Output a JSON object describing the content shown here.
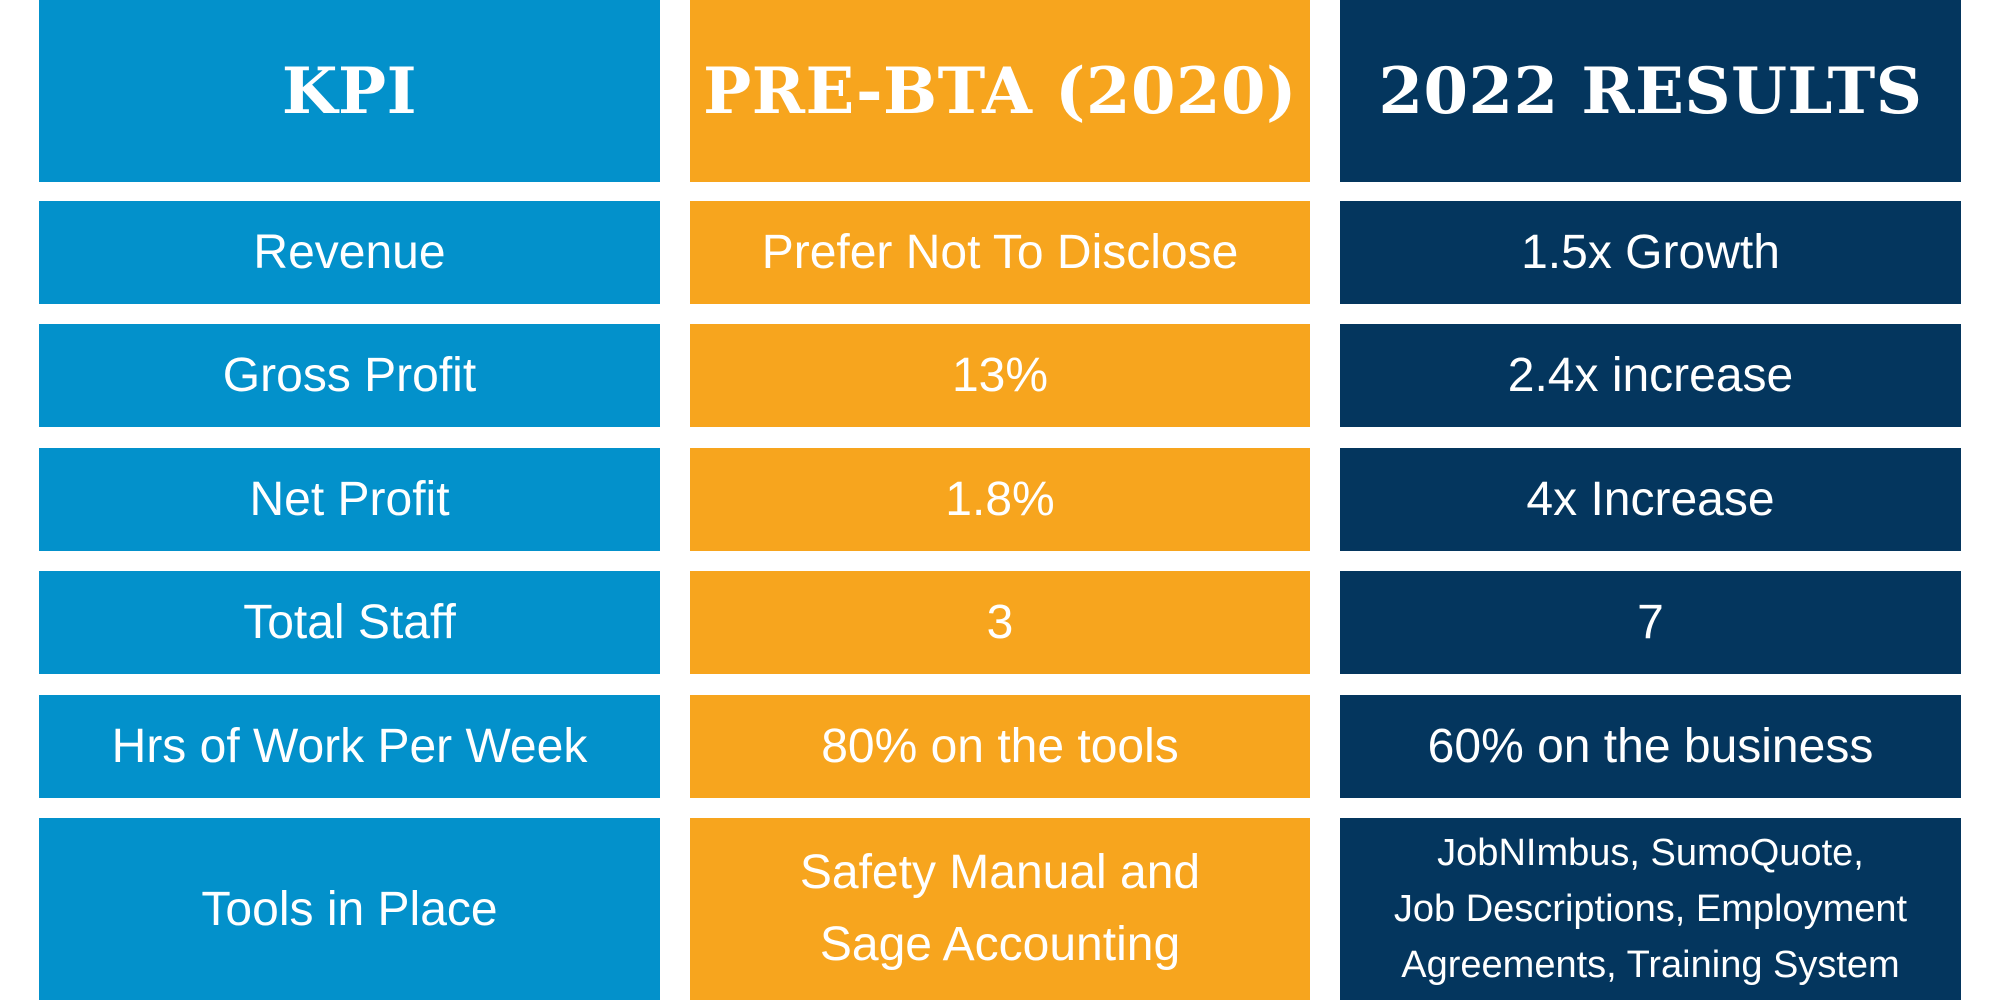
{
  "headers": {
    "kpi": "KPI",
    "pre": "PRE-BTA (2020)",
    "post": "2022 RESULTS"
  },
  "rows": [
    {
      "kpi": "Revenue",
      "pre": "Prefer Not To Disclose",
      "post": "1.5x Growth"
    },
    {
      "kpi": "Gross Profit",
      "pre": "13%",
      "post": "2.4x increase"
    },
    {
      "kpi": "Net Profit",
      "pre": "1.8%",
      "post": "4x Increase"
    },
    {
      "kpi": "Total Staff",
      "pre": "3",
      "post": "7"
    },
    {
      "kpi": "Hrs of Work Per Week",
      "pre": "80% on the tools",
      "post": "60% on the business"
    },
    {
      "kpi": "Tools in Place",
      "pre_lines": [
        "Safety Manual and",
        "Sage Accounting"
      ],
      "post_lines": [
        "JobNImbus, SumoQuote,",
        "Job Descriptions, Employment",
        "Agreements, Training System"
      ]
    }
  ],
  "colors": {
    "kpi_column": "#0391cb",
    "pre_column": "#f7a51e",
    "post_column": "#04365e",
    "text": "#ffffff"
  }
}
